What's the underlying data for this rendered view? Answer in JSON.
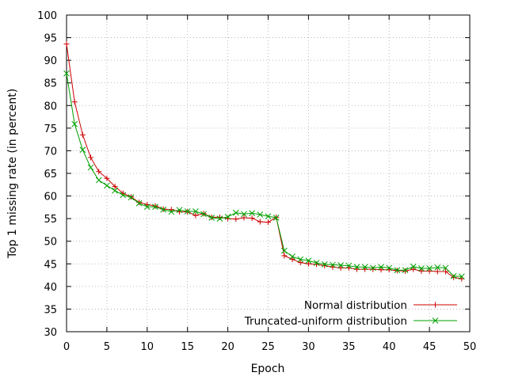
{
  "chart_data": {
    "type": "line",
    "xlabel": "Epoch",
    "ylabel": "Top 1 missing rate (in percent)",
    "xlim": [
      0,
      50
    ],
    "ylim": [
      30,
      100
    ],
    "xticks": [
      "0",
      "5",
      "10",
      "15",
      "20",
      "25",
      "30",
      "35",
      "40",
      "45",
      "50"
    ],
    "yticks": [
      "30",
      "35",
      "40",
      "45",
      "50",
      "55",
      "60",
      "65",
      "70",
      "75",
      "80",
      "85",
      "90",
      "95",
      "100"
    ],
    "grid": true,
    "legend_position": "bottom-right",
    "series": [
      {
        "name": "Normal distribution",
        "color": "#cc0000",
        "marker": "plus",
        "x": [
          0,
          1,
          2,
          3,
          4,
          5,
          6,
          7,
          8,
          9,
          10,
          11,
          12,
          13,
          14,
          15,
          16,
          17,
          18,
          19,
          20,
          21,
          22,
          23,
          24,
          25,
          26,
          27,
          28,
          29,
          30,
          31,
          32,
          33,
          34,
          35,
          36,
          37,
          38,
          39,
          40,
          41,
          42,
          43,
          44,
          45,
          46,
          47,
          48,
          49
        ],
        "y": [
          93.6,
          80.8,
          73.5,
          68.5,
          65.4,
          63.9,
          62.1,
          60.6,
          59.8,
          58.6,
          58.1,
          57.8,
          57.1,
          57.0,
          56.5,
          56.5,
          55.7,
          56.1,
          55.3,
          55.3,
          55.0,
          54.9,
          55.2,
          55.1,
          54.3,
          54.2,
          55.3,
          46.8,
          46.0,
          45.3,
          45.0,
          44.9,
          44.6,
          44.3,
          44.1,
          44.1,
          43.8,
          43.8,
          43.8,
          43.7,
          43.7,
          43.5,
          43.4,
          43.8,
          43.4,
          43.4,
          43.3,
          43.3,
          42.0,
          41.7
        ]
      },
      {
        "name": "Truncated-uniform distribution",
        "color": "#00a000",
        "marker": "cross",
        "x": [
          0,
          1,
          2,
          3,
          4,
          5,
          6,
          7,
          8,
          9,
          10,
          11,
          12,
          13,
          14,
          15,
          16,
          17,
          18,
          19,
          20,
          21,
          22,
          23,
          24,
          25,
          26,
          27,
          28,
          29,
          30,
          31,
          32,
          33,
          34,
          35,
          36,
          37,
          38,
          39,
          40,
          41,
          42,
          43,
          44,
          45,
          46,
          47,
          48,
          49
        ],
        "y": [
          87.1,
          75.9,
          70.2,
          66.3,
          63.5,
          62.3,
          61.2,
          60.2,
          59.7,
          58.4,
          57.6,
          57.6,
          57.0,
          56.5,
          56.9,
          56.6,
          56.6,
          56.0,
          55.2,
          55.0,
          55.4,
          56.3,
          56.0,
          56.2,
          55.9,
          55.5,
          55.2,
          47.9,
          46.6,
          46.0,
          45.7,
          45.2,
          44.9,
          44.8,
          44.7,
          44.6,
          44.3,
          44.3,
          44.1,
          44.3,
          44.1,
          43.6,
          43.6,
          44.4,
          44.0,
          44.0,
          44.2,
          44.1,
          42.3,
          42.2
        ]
      }
    ]
  }
}
